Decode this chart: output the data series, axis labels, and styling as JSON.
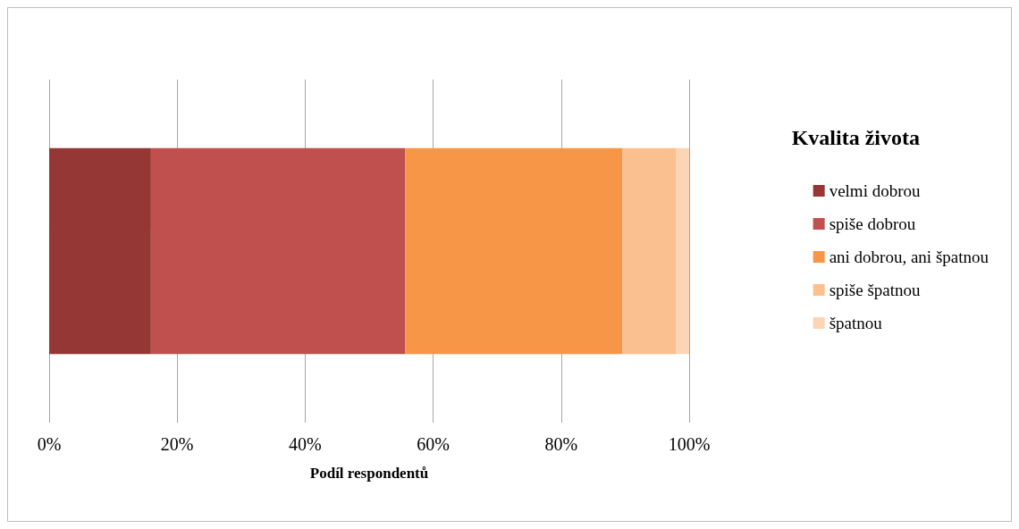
{
  "chart_data": {
    "type": "bar",
    "orientation": "horizontal",
    "stacked": true,
    "categories": [
      null
    ],
    "series": [
      {
        "name": "velmi dobrou",
        "color": "#953735",
        "values": [
          15.9
        ]
      },
      {
        "name": "spiše dobrou",
        "color": "#c0504d",
        "values": [
          39.7
        ]
      },
      {
        "name": "ani dobrou, ani špatnou",
        "color": "#f79646",
        "values": [
          34.0
        ]
      },
      {
        "name": "spiše špatnou",
        "color": "#fac090",
        "values": [
          8.4
        ]
      },
      {
        "name": "špatnou",
        "color": "#fcd5b5",
        "values": [
          2.0
        ]
      }
    ],
    "xlim": [
      0,
      100
    ],
    "xticks": [
      {
        "value": 0,
        "label": "0%"
      },
      {
        "value": 20,
        "label": "20%"
      },
      {
        "value": 40,
        "label": "40%"
      },
      {
        "value": 60,
        "label": "60%"
      },
      {
        "value": 80,
        "label": "80%"
      },
      {
        "value": 100,
        "label": "100%"
      }
    ],
    "xlabel": "Podíl respondentů",
    "legend_title": "Kvalita života",
    "legend": "right",
    "grid": "x"
  }
}
